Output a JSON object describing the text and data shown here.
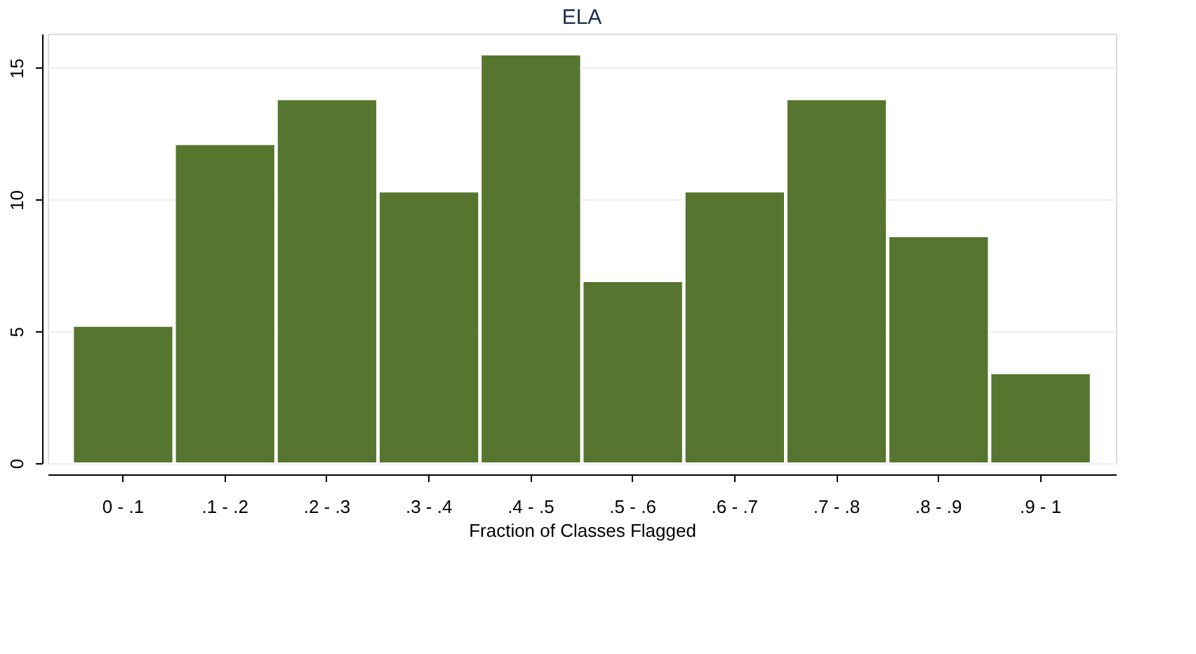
{
  "chart_data": {
    "type": "bar",
    "title": "ELA",
    "xlabel": "Fraction of Classes Flagged",
    "categories": [
      "0 - .1",
      ".1 - .2",
      ".2 - .3",
      ".3 - .4",
      ".4 - .5",
      ".5 - .6",
      ".6 - .7",
      ".7 - .8",
      ".8 - .9",
      ".9 - 1"
    ],
    "values": [
      5.2,
      12.1,
      13.8,
      10.3,
      15.5,
      6.9,
      10.3,
      13.8,
      8.6,
      3.4
    ],
    "color": "#56752f",
    "ylim": [
      0,
      16.3
    ],
    "yticks": [
      0,
      5,
      10,
      15
    ],
    "grid": "y"
  }
}
